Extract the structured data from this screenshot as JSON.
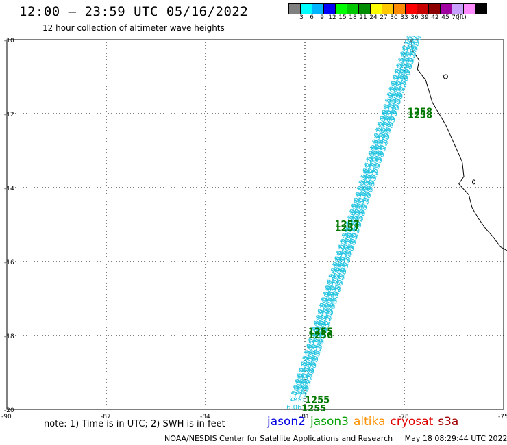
{
  "header": {
    "title": "12:00 – 23:59 UTC 05/16/2022",
    "subtitle": "12 hour collection of altimeter wave heights"
  },
  "colorbar": {
    "colors": [
      "#808080",
      "#00ffff",
      "#00b4ff",
      "#0000ff",
      "#00ff00",
      "#00c800",
      "#008c00",
      "#ffff00",
      "#ffc800",
      "#ff8c00",
      "#ff0000",
      "#c80000",
      "#8c0000",
      "#a000a0",
      "#c8a0ff",
      "#ff8cff",
      "#000000"
    ],
    "labels": [
      "3",
      "6",
      "9",
      "12",
      "15",
      "18",
      "21",
      "24",
      "27",
      "30",
      "33",
      "36",
      "39",
      "42",
      "45",
      "70",
      "(ft)"
    ]
  },
  "map": {
    "lat_labels": [
      "-10",
      "-12",
      "-14",
      "-16",
      "-18",
      "-20"
    ],
    "lon_labels": [
      "-90",
      "-87",
      "-84",
      "-81",
      "-78",
      "-75"
    ],
    "lat_values": [
      -10,
      -12,
      -14,
      -16,
      -18,
      -20
    ],
    "lon_values": [
      -90,
      -87,
      -84,
      -81,
      -78,
      -75
    ],
    "time_labels": [
      {
        "text": "1258",
        "lon": -77.9,
        "lat": -11.95
      },
      {
        "text": "1258",
        "lon": -77.9,
        "lat": -12.05
      },
      {
        "text": "1257",
        "lon": -80.1,
        "lat": -15.0
      },
      {
        "text": "1257",
        "lon": -80.1,
        "lat": -15.1
      },
      {
        "text": "1255",
        "lon": -80.9,
        "lat": -17.9
      },
      {
        "text": "1256",
        "lon": -80.9,
        "lat": -18.0
      },
      {
        "text": "1255",
        "lon": -81.0,
        "lat": -19.75
      },
      {
        "text": "1255",
        "lon": -81.1,
        "lat": -19.98
      }
    ],
    "swh_sample_labels": [
      "6.06",
      "5.90",
      "5.98",
      "5.95",
      "6.22"
    ],
    "track_color": "#22c4e0",
    "time_label_color": "#007800"
  },
  "chart_data": {
    "type": "scatter",
    "title": "12:00 – 23:59 UTC 05/16/2022",
    "subtitle": "12 hour collection of altimeter wave heights",
    "xlim": [
      -90,
      -75
    ],
    "ylim": [
      -20,
      -10
    ],
    "series": [
      {
        "name": "jason3",
        "points": [
          {
            "lon": -81.2,
            "lat": -19.8,
            "swh": 6.06
          },
          {
            "lon": -80.3,
            "lat": -17.6,
            "swh": 5.98
          },
          {
            "lon": -79.4,
            "lat": -15.4,
            "swh": 6.1
          },
          {
            "lon": -78.5,
            "lat": -13.2,
            "swh": 6.2
          },
          {
            "lon": -77.8,
            "lat": -10.3,
            "swh": 6.22
          }
        ]
      }
    ]
  },
  "footer": {
    "note": "note: 1) Time is in UTC; 2) SWH is in feet",
    "legend": [
      {
        "label": "jason2",
        "color": "#0000e0"
      },
      {
        "label": "jason3",
        "color": "#00a000"
      },
      {
        "label": "altika",
        "color": "#ff9000"
      },
      {
        "label": "cryosat",
        "color": "#e00000"
      },
      {
        "label": "s3a",
        "color": "#a00000"
      }
    ],
    "credit": "NOAA/NESDIS Center for Satellite Applications and Research",
    "timestamp": "May 18 08:29:44 UTC 2022"
  }
}
